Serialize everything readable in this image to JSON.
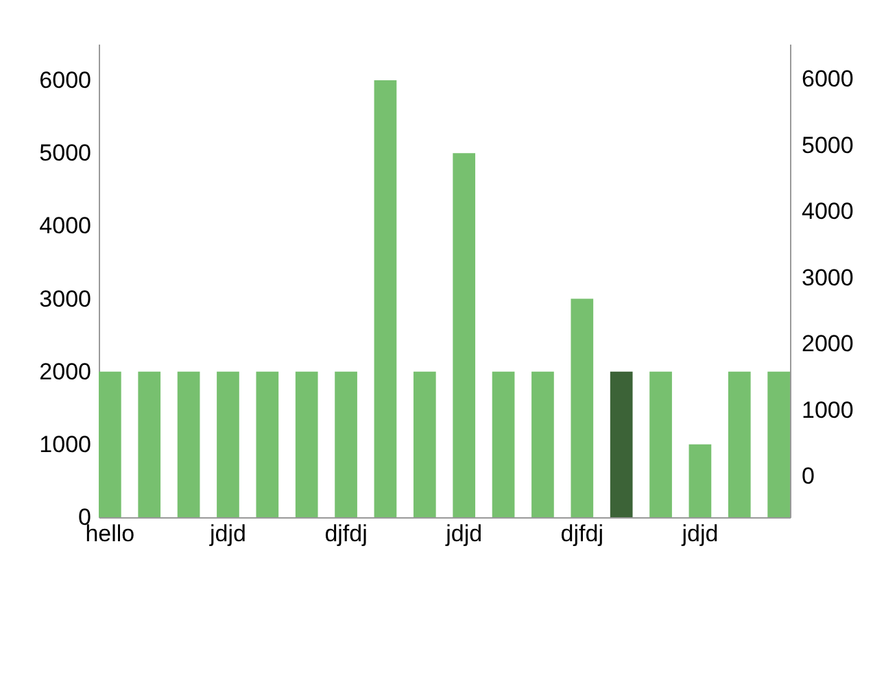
{
  "chart_data": {
    "type": "bar",
    "categories": [
      "hello",
      null,
      null,
      "jdjd",
      null,
      null,
      "djfdj",
      null,
      null,
      "jdjd",
      null,
      null,
      "djfdj",
      null,
      null,
      "jdjd",
      null,
      null
    ],
    "values": [
      2000,
      2000,
      2000,
      2000,
      2000,
      2000,
      2000,
      6000,
      2000,
      5000,
      2000,
      2000,
      3000,
      2000,
      2000,
      1000,
      2000,
      2000
    ],
    "colors": [
      "#77c06f",
      "#77c06f",
      "#77c06f",
      "#77c06f",
      "#77c06f",
      "#77c06f",
      "#77c06f",
      "#77c06f",
      "#77c06f",
      "#77c06f",
      "#77c06f",
      "#77c06f",
      "#77c06f",
      "#3c6337",
      "#77c06f",
      "#77c06f",
      "#77c06f",
      "#77c06f"
    ],
    "ylim": [
      0,
      6500
    ],
    "yticks": [
      0,
      1000,
      2000,
      3000,
      4000,
      5000,
      6000
    ],
    "y2lim": [
      -620,
      6530
    ],
    "y2ticks": [
      0,
      1000,
      2000,
      3000,
      4000,
      5000,
      6000
    ],
    "grid": false
  }
}
